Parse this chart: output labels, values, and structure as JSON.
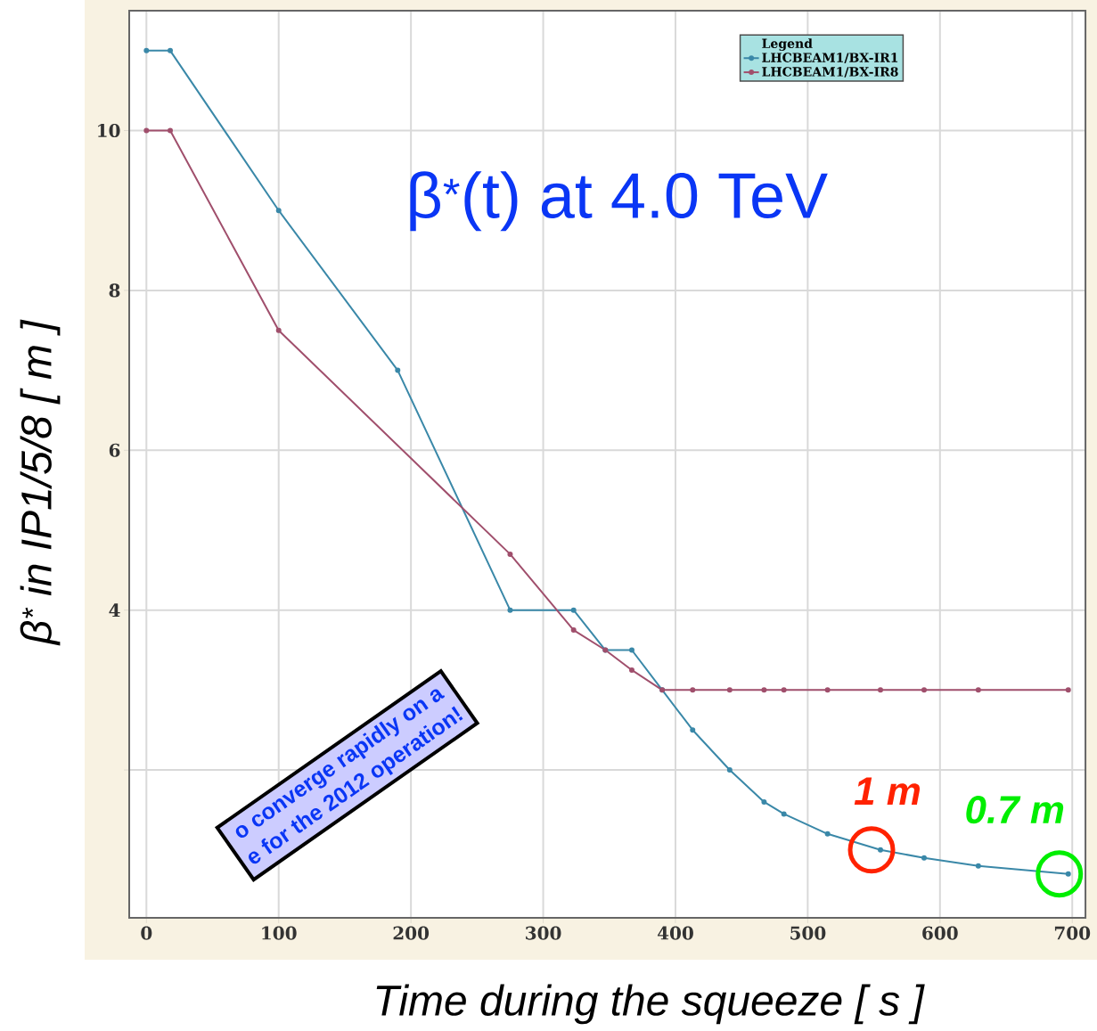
{
  "chart_data": {
    "type": "line",
    "title": "β$^{*}$(t) at 4.0 TeV",
    "xlabel": "Time during the squeeze [ s ]",
    "ylabel": "β$^{*}$ in IP1/5/8 [ m ]",
    "legend_title": "Legend",
    "series": [
      {
        "name": "LHCBEAM1/BX-IR1",
        "color": "#3a88a8",
        "x": [
          0,
          18,
          100,
          190,
          275,
          323,
          347,
          367,
          390,
          413,
          441,
          467,
          482,
          515,
          555,
          588,
          629,
          697
        ],
        "values": [
          11,
          11,
          9,
          7,
          4,
          4,
          3.5,
          3.5,
          3,
          2.5,
          2,
          1.6,
          1.45,
          1.2,
          1,
          0.9,
          0.8,
          0.7
        ]
      },
      {
        "name": "LHCBEAM1/BX-IR8",
        "color": "#a04f6c",
        "x": [
          0,
          18,
          100,
          275,
          323,
          347,
          367,
          390,
          413,
          441,
          467,
          482,
          515,
          555,
          588,
          629,
          697
        ],
        "values": [
          10,
          10,
          7.5,
          4.7,
          3.75,
          3.5,
          3.25,
          3,
          3,
          3,
          3,
          3,
          3,
          3,
          3,
          3,
          3
        ]
      }
    ],
    "annotations": [
      {
        "text": "1 m",
        "x": 555,
        "y": 1
      },
      {
        "text": "0.7 m",
        "x": 697,
        "y": 0.7
      },
      "o converge rapidly on a",
      "e for the 2012 operation!"
    ],
    "xlim": [
      -13,
      710
    ],
    "ylim": [
      0.15,
      11.5
    ],
    "xticks": [
      0,
      100,
      200,
      300,
      400,
      500,
      600,
      700
    ],
    "yticks": [
      {
        "value": 2,
        "label": null
      },
      4,
      6,
      8,
      10
    ],
    "grid": true,
    "legend": "top right",
    "marker": "circle",
    "line_style": "solid"
  }
}
